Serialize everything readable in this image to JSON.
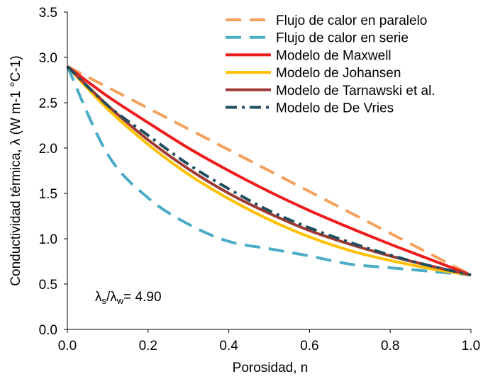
{
  "chart_data": {
    "type": "line",
    "title": "",
    "xlabel": "Porosidad, n",
    "ylabel": "Conductividad térmica, λ (W m-1 °C-1)",
    "xlim": [
      0,
      1
    ],
    "ylim": [
      0,
      3.5
    ],
    "x_ticks": [
      "0.0",
      "0.2",
      "0.4",
      "0.6",
      "0.8",
      "1.0"
    ],
    "y_ticks": [
      "0.0",
      "0.5",
      "1.0",
      "1.5",
      "2.0",
      "2.5",
      "3.0",
      "3.5"
    ],
    "grid": false,
    "legend_position": "top-right",
    "annotation": {
      "prefix": "λ",
      "sub1": "s",
      "mid": "/λ",
      "sub2": "w",
      "suffix": "= 4.90"
    },
    "x": [
      0,
      0.1,
      0.2,
      0.3,
      0.4,
      0.5,
      0.6,
      0.7,
      0.8,
      0.9,
      1.0
    ],
    "series": [
      {
        "name": "Flujo de calor en paralelo",
        "color": "#f4a15d",
        "style": "dash",
        "values": [
          2.9,
          2.67,
          2.44,
          2.21,
          1.98,
          1.75,
          1.52,
          1.29,
          1.06,
          0.83,
          0.6
        ]
      },
      {
        "name": "Flujo de calor en serie",
        "color": "#4bacc6",
        "style": "dash",
        "values": [
          2.9,
          1.93,
          1.45,
          1.16,
          0.97,
          0.89,
          0.81,
          0.72,
          0.68,
          0.64,
          0.6
        ]
      },
      {
        "name": "Modelo de Maxwell",
        "color": "#ee1c1c",
        "style": "solid",
        "values": [
          2.9,
          2.57,
          2.28,
          2.0,
          1.75,
          1.52,
          1.31,
          1.12,
          0.94,
          0.77,
          0.6
        ]
      },
      {
        "name": "Modelo de Johansen",
        "color": "#ffc000",
        "style": "solid",
        "values": [
          2.9,
          2.43,
          2.04,
          1.71,
          1.44,
          1.21,
          1.02,
          0.87,
          0.76,
          0.67,
          0.6
        ]
      },
      {
        "name": "Modelo de Tarnawski et al.",
        "color": "#9e3b34",
        "style": "solid",
        "values": [
          2.9,
          2.47,
          2.09,
          1.77,
          1.5,
          1.28,
          1.09,
          0.94,
          0.81,
          0.7,
          0.6
        ]
      },
      {
        "name": "Modelo de De Vries",
        "color": "#1f4e5f",
        "style": "dashdot",
        "values": [
          2.9,
          2.47,
          2.14,
          1.82,
          1.55,
          1.31,
          1.12,
          0.96,
          0.82,
          0.7,
          0.6
        ]
      }
    ]
  }
}
